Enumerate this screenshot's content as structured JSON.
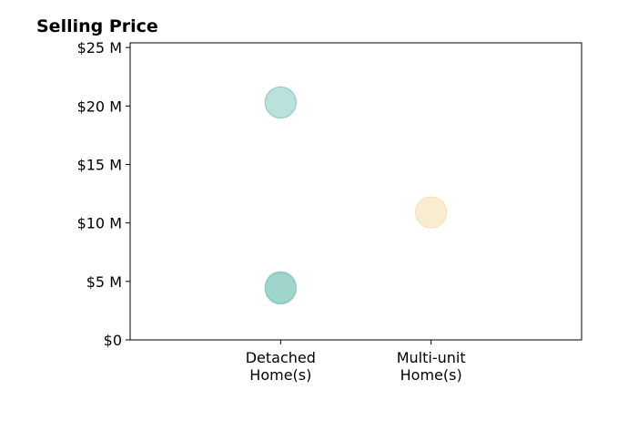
{
  "chart_data": {
    "type": "scatter",
    "title": "Selling Price",
    "xlabel": "",
    "ylabel": "",
    "categories": [
      [
        "Detached",
        "Home(s)"
      ],
      [
        "Multi-unit",
        "Home(s)"
      ]
    ],
    "y_ticks": [
      {
        "value": 0,
        "label": "$0"
      },
      {
        "value": 5000000,
        "label": "$5 M"
      },
      {
        "value": 10000000,
        "label": "$10 M"
      },
      {
        "value": 15000000,
        "label": "$15 M"
      },
      {
        "value": 20000000,
        "label": "$20 M"
      },
      {
        "value": 25000000,
        "label": "$25 M"
      }
    ],
    "ylim": [
      0,
      25400000
    ],
    "grid": false,
    "legend": "none",
    "points": [
      {
        "category": 0,
        "value": 20300000,
        "color": "#8ecdc5"
      },
      {
        "category": 0,
        "value": 4500000,
        "color": "#8ecdc5"
      },
      {
        "category": 0,
        "value": 4400000,
        "color": "#8ecdc5"
      },
      {
        "category": 1,
        "value": 10900000,
        "color": "#f5e1b3"
      }
    ]
  }
}
